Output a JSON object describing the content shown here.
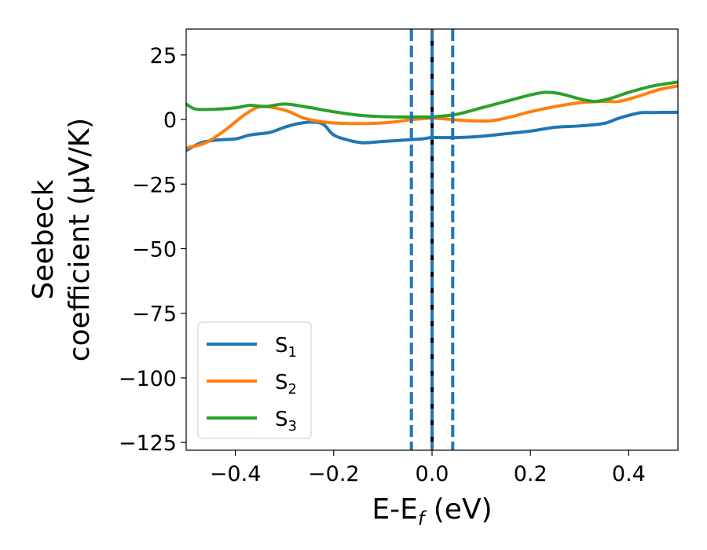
{
  "chart_data": {
    "type": "line",
    "xlabel": {
      "main": "E-E",
      "sub": "f",
      "units": " (eV)"
    },
    "ylabel": {
      "line1": "Seebeck",
      "line2": "coefficient  (μV/K)"
    },
    "xlim": [
      -0.5,
      0.5
    ],
    "ylim": [
      -128,
      35
    ],
    "xticks": [
      -0.4,
      -0.2,
      0.0,
      0.2,
      0.4
    ],
    "xtick_labels": [
      "−0.4",
      "−0.2",
      "0.0",
      "0.2",
      "0.4"
    ],
    "yticks": [
      25,
      0,
      -25,
      -50,
      -75,
      -100,
      -125
    ],
    "ytick_labels": [
      "25",
      "0",
      "−25",
      "−50",
      "−75",
      "−100",
      "−125"
    ],
    "grid": false,
    "legend_position": "lower-left",
    "series": [
      {
        "name": "S",
        "sub": "1",
        "color": "#1f77b4",
        "x": [
          -0.5,
          -0.47,
          -0.44,
          -0.4,
          -0.37,
          -0.33,
          -0.3,
          -0.27,
          -0.24,
          -0.22,
          -0.2,
          -0.17,
          -0.14,
          -0.1,
          -0.06,
          -0.02,
          0.0,
          0.05,
          0.1,
          0.15,
          0.2,
          0.25,
          0.3,
          0.35,
          0.38,
          0.42,
          0.45,
          0.5
        ],
        "y": [
          -12,
          -9,
          -8,
          -7.5,
          -6,
          -5,
          -3,
          -1.5,
          -1,
          -2,
          -6,
          -8,
          -9,
          -8.5,
          -8,
          -7.5,
          -7,
          -7,
          -6.5,
          -5.5,
          -4.5,
          -3,
          -2.5,
          -1.5,
          0.5,
          2.5,
          2.7,
          2.8
        ]
      },
      {
        "name": "S",
        "sub": "2",
        "color": "#ff7f0e",
        "x": [
          -0.5,
          -0.46,
          -0.42,
          -0.38,
          -0.35,
          -0.32,
          -0.29,
          -0.26,
          -0.22,
          -0.18,
          -0.12,
          -0.08,
          -0.04,
          0.0,
          0.04,
          0.08,
          0.12,
          0.16,
          0.2,
          0.25,
          0.3,
          0.35,
          0.38,
          0.42,
          0.46,
          0.5
        ],
        "y": [
          -11,
          -9,
          -4,
          2,
          5,
          4.5,
          3,
          0.5,
          -1,
          -1.5,
          -1.5,
          -1,
          0,
          0.5,
          0,
          -0.5,
          -0.5,
          1,
          3,
          5,
          6.5,
          7,
          7,
          9,
          11.5,
          13
        ]
      },
      {
        "name": "S",
        "sub": "3",
        "color": "#2ca02c",
        "x": [
          -0.5,
          -0.48,
          -0.44,
          -0.4,
          -0.37,
          -0.34,
          -0.3,
          -0.26,
          -0.2,
          -0.14,
          -0.08,
          -0.02,
          0.0,
          0.05,
          0.1,
          0.15,
          0.2,
          0.23,
          0.26,
          0.3,
          0.33,
          0.36,
          0.4,
          0.45,
          0.5
        ],
        "y": [
          6,
          4,
          4,
          4.5,
          5.5,
          5,
          6,
          5,
          3,
          1.5,
          1,
          1,
          1,
          2,
          4.5,
          7,
          9.5,
          10.5,
          10,
          8,
          7,
          8,
          10.5,
          13,
          14.5
        ]
      }
    ],
    "vlines": [
      {
        "x": 0.0,
        "color": "#000000",
        "style": "solid"
      },
      {
        "x": 0.0,
        "color": "#1f77b4",
        "style": "dashed"
      },
      {
        "x": -0.042,
        "color": "#1f77b4",
        "style": "dashed"
      },
      {
        "x": 0.042,
        "color": "#1f77b4",
        "style": "dashed"
      }
    ]
  }
}
